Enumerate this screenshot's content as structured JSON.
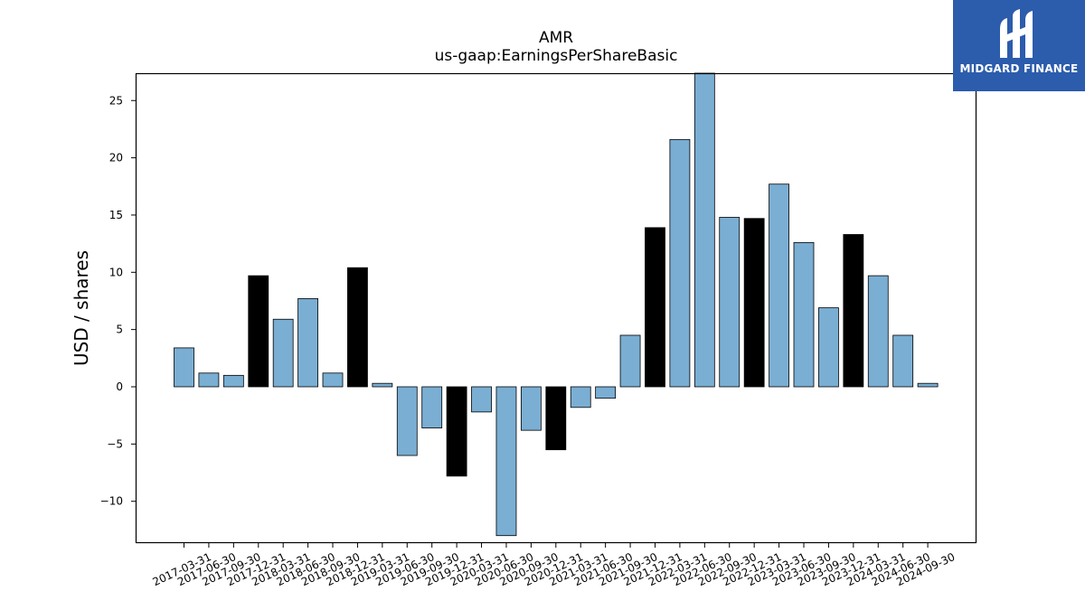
{
  "chart_data": {
    "type": "bar",
    "title": "AMR",
    "subtitle": "us-gaap:EarningsPerShareBasic",
    "xlabel": "",
    "ylabel": "USD / shares",
    "ylim": [
      -13.5,
      27.5
    ],
    "yticks": [
      -10,
      -5,
      0,
      5,
      10,
      15,
      20,
      25
    ],
    "grid": false,
    "categories": [
      "2017-03-31",
      "2017-06-30",
      "2017-09-30",
      "2017-12-31",
      "2018-03-31",
      "2018-06-30",
      "2018-09-30",
      "2018-12-31",
      "2019-03-31",
      "2019-06-30",
      "2019-09-30",
      "2019-12-31",
      "2020-03-31",
      "2020-06-30",
      "2020-09-30",
      "2020-12-31",
      "2021-03-31",
      "2021-06-30",
      "2021-09-30",
      "2021-12-31",
      "2022-03-31",
      "2022-06-30",
      "2022-09-30",
      "2022-12-31",
      "2023-03-31",
      "2023-06-30",
      "2023-09-30",
      "2023-12-31",
      "2024-03-31",
      "2024-06-30",
      "2024-09-30"
    ],
    "values": [
      3.4,
      1.2,
      1.0,
      9.7,
      5.9,
      7.7,
      1.2,
      10.4,
      0.3,
      -6.0,
      -3.6,
      -7.8,
      -2.2,
      -13.0,
      -3.8,
      -5.5,
      -1.8,
      -1.0,
      4.5,
      13.9,
      21.6,
      27.5,
      14.8,
      14.7,
      17.7,
      12.6,
      6.9,
      13.3,
      9.7,
      4.5,
      0.3
    ],
    "highlight": [
      false,
      false,
      false,
      true,
      false,
      false,
      false,
      true,
      false,
      false,
      false,
      true,
      false,
      false,
      false,
      true,
      false,
      false,
      false,
      true,
      false,
      false,
      false,
      true,
      false,
      false,
      false,
      true,
      false,
      false,
      false
    ],
    "colors": {
      "quarter": "#7aaed3",
      "year_end": "#000000",
      "edge": "#000000"
    }
  },
  "logo": {
    "text": "MIDGARD FINANCE",
    "icon": "midgard-logo-icon",
    "background": "#2c5cac"
  }
}
